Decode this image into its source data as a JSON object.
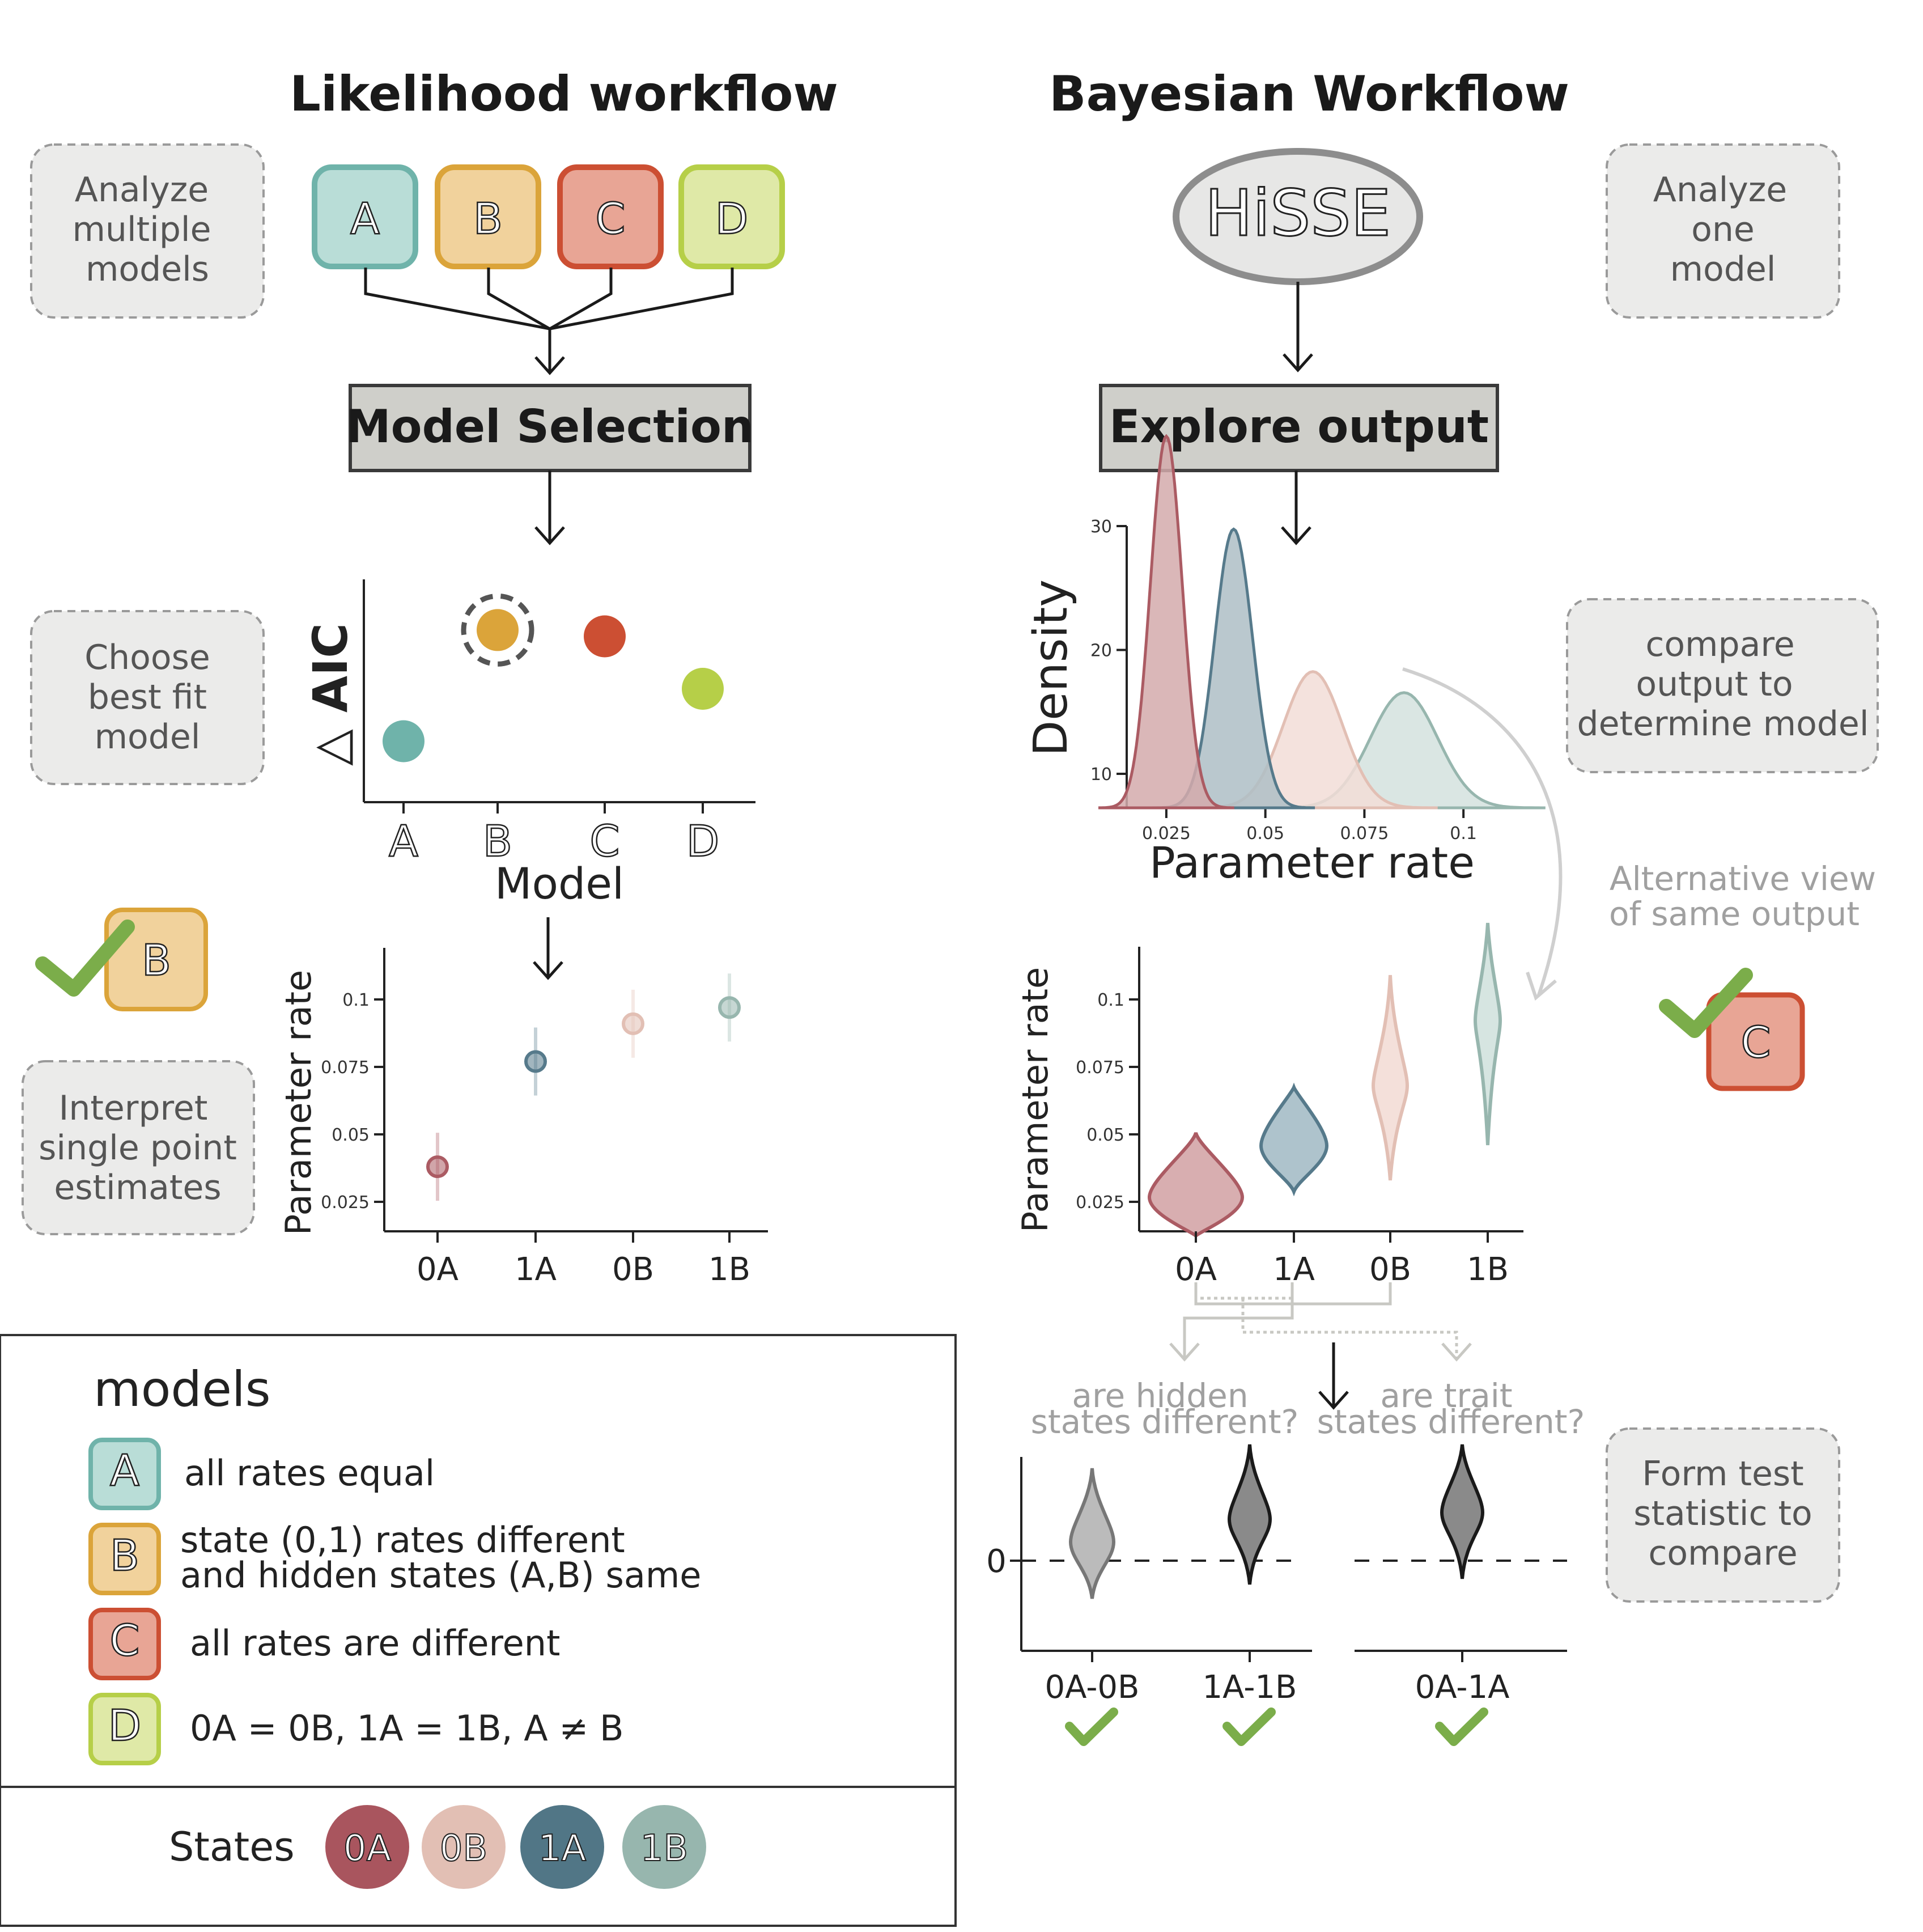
{
  "titles": {
    "likelihood": "Likelihood workflow",
    "bayesian": "Bayesian Workflow"
  },
  "notes": {
    "analyze_multiple": [
      "Analyze",
      "multiple",
      "models"
    ],
    "choose_best": [
      "Choose",
      "best fit",
      "model"
    ],
    "interpret": [
      "Interpret",
      "single point",
      "estimates"
    ],
    "analyze_one": [
      "Analyze",
      "one",
      "model"
    ],
    "compare_output": [
      "compare",
      "output to",
      "determine model"
    ],
    "alternative_view": [
      "Alternative view",
      "of same output"
    ],
    "form_test": [
      "Form test",
      "statistic to",
      "compare"
    ],
    "hidden_states": [
      "are hidden",
      "states different?"
    ],
    "trait_states": [
      "are trait",
      "states different?"
    ]
  },
  "models": [
    {
      "letter": "A",
      "color": "#b9ddd7",
      "border": "#6fb3aa"
    },
    {
      "letter": "B",
      "color": "#f1d29c",
      "border": "#dba43a"
    },
    {
      "letter": "C",
      "color": "#e8a595",
      "border": "#cc4f33"
    },
    {
      "letter": "D",
      "color": "#dfe9a7",
      "border": "#b6cf48"
    }
  ],
  "boxes": {
    "model_selection": "Model Selection",
    "explore_output": "Explore output",
    "hisse": "HiSSE"
  },
  "aic_plot": {
    "ylabel": "△ AIC",
    "xlabel": "Model",
    "categories": [
      "A",
      "B",
      "C",
      "D"
    ],
    "values": [
      0.25,
      0.78,
      0.75,
      0.5
    ],
    "colors": [
      "#6fb3aa",
      "#dba43a",
      "#cc4f33",
      "#b6cf48"
    ],
    "selected": "B"
  },
  "best_model": "B",
  "bayes_best_model": "C",
  "point_plot": {
    "ylabel": "Parameter rate",
    "categories": [
      "0A",
      "1A",
      "0B",
      "1B"
    ],
    "values": [
      0.038,
      0.077,
      0.091,
      0.097
    ],
    "yticks": [
      "0.025",
      "0.05",
      "0.075",
      "0.1"
    ],
    "colors": [
      "#ab5b63",
      "#567a8b",
      "#e2bfb4",
      "#97b6ae"
    ]
  },
  "chart_data": {
    "type": "area",
    "ylabel": "Density",
    "xlabel": "Parameter rate",
    "xticks": [
      "0.025",
      "0.05",
      "0.075",
      "0.1"
    ],
    "yticks": [
      "10",
      "20",
      "30"
    ],
    "xlim": [
      0.015,
      0.114
    ],
    "ylim": [
      7,
      30
    ],
    "series": [
      {
        "mean": 0.025,
        "sd": 0.004,
        "peak": 30,
        "color": "#ab5b63",
        "fill": "#d3aaac"
      },
      {
        "mean": 0.042,
        "sd": 0.0048,
        "peak": 22.5,
        "color": "#567a8b",
        "fill": "#aebec6"
      },
      {
        "mean": 0.062,
        "sd": 0.0075,
        "peak": 11,
        "color": "#e2bfb4",
        "fill": "#f2ddd7"
      },
      {
        "mean": 0.085,
        "sd": 0.0085,
        "peak": 9.3,
        "color": "#97b6ae",
        "fill": "#d3e2de"
      }
    ]
  },
  "violin_plot": {
    "ylabel": "Parameter rate",
    "categories": [
      "0A",
      "1A",
      "0B",
      "1B"
    ],
    "yticks": [
      "0.025",
      "0.05",
      "0.075",
      "0.1"
    ],
    "colors": [
      "#ab5b63",
      "#567a8b",
      "#e2bfb4",
      "#97b6ae"
    ],
    "fills": [
      "#d8aeb0",
      "#aec3cc",
      "#f4e0da",
      "#d6e5e1"
    ]
  },
  "diff_plot": {
    "zero_label": "0",
    "categories": [
      "0A-0B",
      "1A-1B",
      "0A-1A"
    ]
  },
  "legend": {
    "title": "models",
    "items": [
      {
        "letter": "A",
        "text": [
          "all rates equal"
        ]
      },
      {
        "letter": "B",
        "text": [
          "state (0,1) rates different",
          "and hidden states (A,B) same"
        ]
      },
      {
        "letter": "C",
        "text": [
          "all rates are different"
        ]
      },
      {
        "letter": "D",
        "text": [
          "0A = 0B, 1A = 1B, A ≠ B"
        ]
      }
    ],
    "states_label": "States",
    "states": [
      {
        "label": "0A",
        "color": "#a9555e"
      },
      {
        "label": "0B",
        "color": "#e2bfb4"
      },
      {
        "label": "1A",
        "color": "#517686"
      },
      {
        "label": "1B",
        "color": "#97b6ae"
      }
    ]
  }
}
